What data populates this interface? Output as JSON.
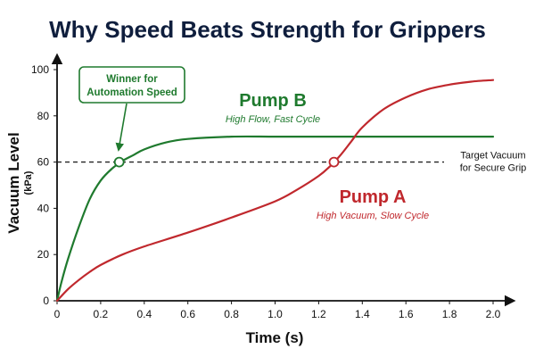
{
  "colors": {
    "title": "#0f1e3d",
    "pump_a": "#c0282d",
    "pump_b": "#1f7a2e",
    "axis": "#111111",
    "target": "#222222"
  },
  "chart_data": {
    "type": "line",
    "title": "Why Speed Beats Strength for Grippers",
    "xlabel": "Time (s)",
    "ylabel": "Vacuum Level",
    "ylabel_unit": "(kPa)",
    "xlim": [
      0,
      2.0
    ],
    "ylim": [
      0,
      100
    ],
    "x_ticks": [
      "0",
      "0.2",
      "0.4",
      "0.6",
      "0.8",
      "1.0",
      "1.2",
      "1.4",
      "1.6",
      "1.8",
      "2.0"
    ],
    "y_ticks": [
      "0",
      "20",
      "40",
      "60",
      "80",
      "100"
    ],
    "grid": false,
    "series": [
      {
        "name": "Pump B",
        "subtitle": "High Flow, Fast Cycle",
        "color": "#1f7a2e",
        "x": [
          0,
          0.02,
          0.05,
          0.1,
          0.15,
          0.2,
          0.25,
          0.3,
          0.35,
          0.4,
          0.5,
          0.6,
          0.8,
          1.0,
          1.2,
          1.4,
          1.6,
          1.8,
          2.0
        ],
        "y": [
          0,
          8,
          18,
          32,
          44,
          52,
          57,
          60.5,
          63,
          65.5,
          68.5,
          70,
          71,
          71,
          71,
          71,
          71,
          71,
          71
        ]
      },
      {
        "name": "Pump A",
        "subtitle": "High Vacuum, Slow Cycle",
        "color": "#c0282d",
        "x": [
          0,
          0.05,
          0.1,
          0.15,
          0.2,
          0.3,
          0.4,
          0.6,
          0.8,
          1.0,
          1.1,
          1.2,
          1.25,
          1.3,
          1.35,
          1.4,
          1.5,
          1.6,
          1.7,
          1.8,
          1.9,
          2.0
        ],
        "y": [
          0,
          5,
          9,
          12.5,
          15.5,
          20,
          23.5,
          29.5,
          36,
          43,
          48,
          54,
          58,
          63,
          69,
          75,
          83,
          88,
          91.5,
          93.5,
          94.8,
          95.5
        ]
      }
    ],
    "target_line": {
      "y": 60,
      "label_line1": "Target Vacuum",
      "label_line2": "for Secure Grip"
    },
    "markers": [
      {
        "series": "Pump B",
        "x": 0.285,
        "y": 60
      },
      {
        "series": "Pump A",
        "x": 1.27,
        "y": 60
      }
    ],
    "callout": {
      "line1": "Winner for",
      "line2": "Automation Speed"
    }
  }
}
